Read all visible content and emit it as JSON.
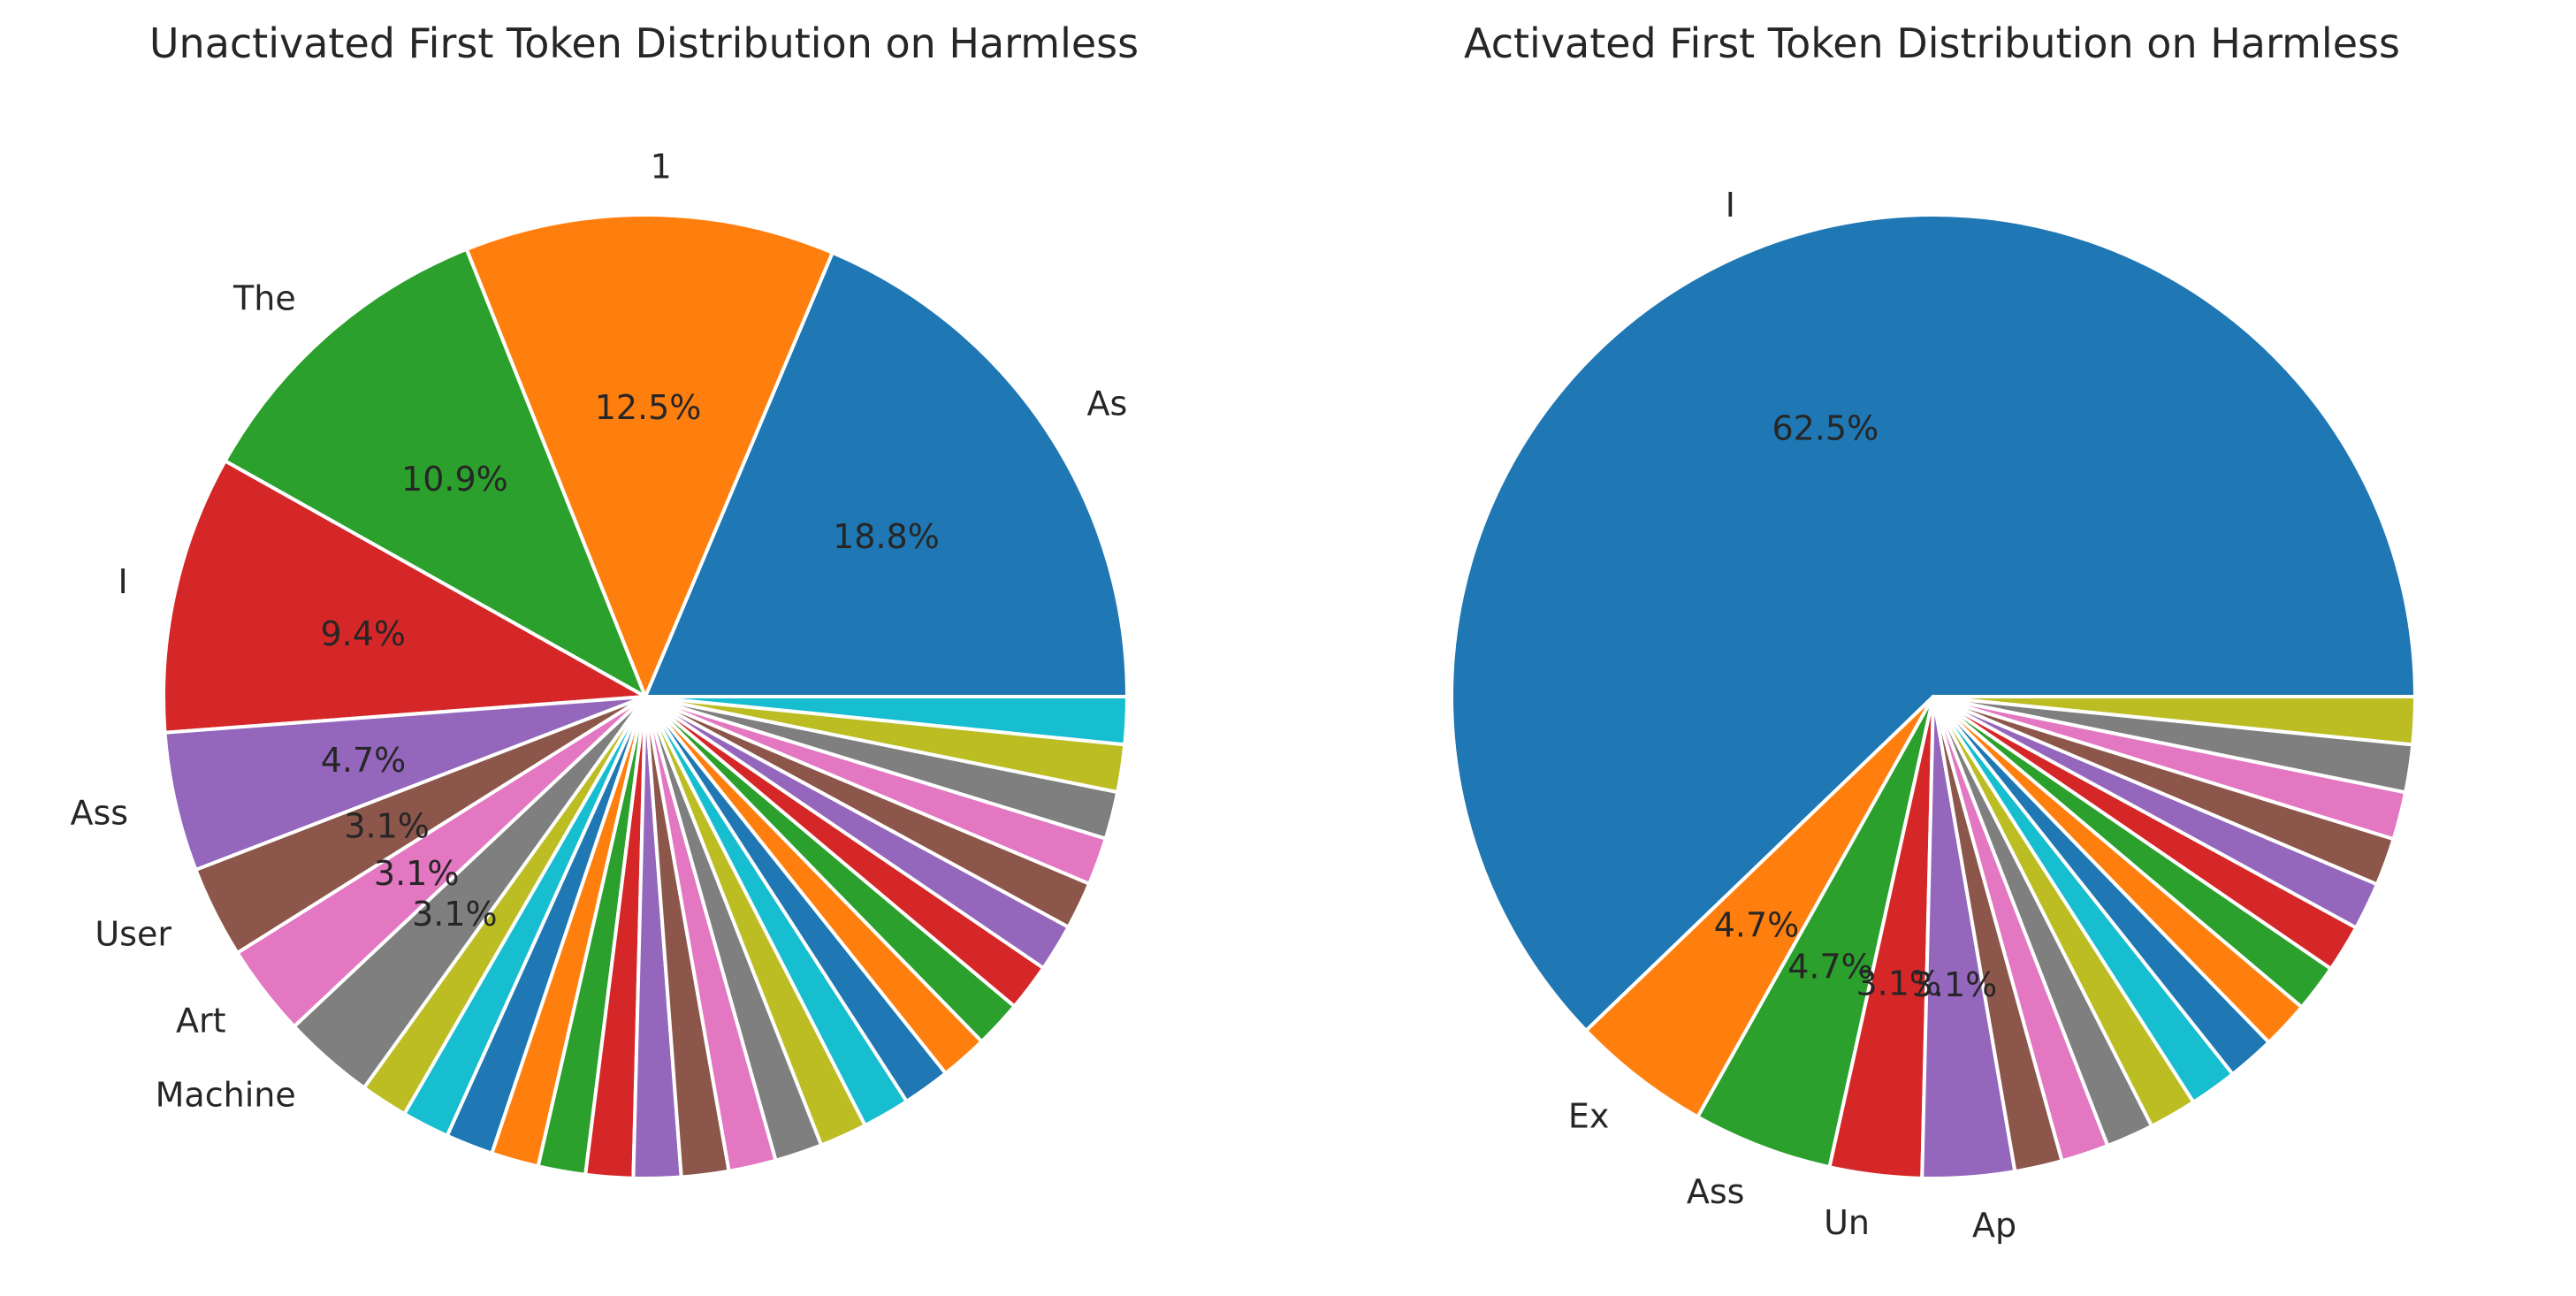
{
  "chart_data": [
    {
      "type": "pie",
      "title": "Unactivated First Token Distribution on Harmless",
      "slices": [
        {
          "label": "As",
          "value": 18.8,
          "pct_label": "18.8%",
          "color": "#1f77b4"
        },
        {
          "label": "1",
          "value": 12.5,
          "pct_label": "12.5%",
          "color": "#ff7f0e"
        },
        {
          "label": "The",
          "value": 10.9,
          "pct_label": "10.9%",
          "color": "#2ca02c"
        },
        {
          "label": "I",
          "value": 9.4,
          "pct_label": "9.4%",
          "color": "#d62728"
        },
        {
          "label": "Ass",
          "value": 4.7,
          "pct_label": "4.7%",
          "color": "#9467bd"
        },
        {
          "label": "User",
          "value": 3.1,
          "pct_label": "3.1%",
          "color": "#8c564b"
        },
        {
          "label": "Art",
          "value": 3.1,
          "pct_label": "3.1%",
          "color": "#e377c2"
        },
        {
          "label": "Machine",
          "value": 3.1,
          "pct_label": "3.1%",
          "color": "#7f7f7f"
        },
        {
          "label": "",
          "value": 1.6,
          "pct_label": "",
          "color": "#bcbd22"
        },
        {
          "label": "",
          "value": 1.6,
          "pct_label": "",
          "color": "#17becf"
        },
        {
          "label": "",
          "value": 1.6,
          "pct_label": "",
          "color": "#1f77b4"
        },
        {
          "label": "",
          "value": 1.6,
          "pct_label": "",
          "color": "#ff7f0e"
        },
        {
          "label": "",
          "value": 1.6,
          "pct_label": "",
          "color": "#2ca02c"
        },
        {
          "label": "",
          "value": 1.6,
          "pct_label": "",
          "color": "#d62728"
        },
        {
          "label": "",
          "value": 1.6,
          "pct_label": "",
          "color": "#9467bd"
        },
        {
          "label": "",
          "value": 1.6,
          "pct_label": "",
          "color": "#8c564b"
        },
        {
          "label": "",
          "value": 1.6,
          "pct_label": "",
          "color": "#e377c2"
        },
        {
          "label": "",
          "value": 1.6,
          "pct_label": "",
          "color": "#7f7f7f"
        },
        {
          "label": "",
          "value": 1.6,
          "pct_label": "",
          "color": "#bcbd22"
        },
        {
          "label": "",
          "value": 1.6,
          "pct_label": "",
          "color": "#17becf"
        },
        {
          "label": "",
          "value": 1.6,
          "pct_label": "",
          "color": "#1f77b4"
        },
        {
          "label": "",
          "value": 1.6,
          "pct_label": "",
          "color": "#ff7f0e"
        },
        {
          "label": "",
          "value": 1.6,
          "pct_label": "",
          "color": "#2ca02c"
        },
        {
          "label": "",
          "value": 1.6,
          "pct_label": "",
          "color": "#d62728"
        },
        {
          "label": "",
          "value": 1.6,
          "pct_label": "",
          "color": "#9467bd"
        },
        {
          "label": "",
          "value": 1.6,
          "pct_label": "",
          "color": "#8c564b"
        },
        {
          "label": "",
          "value": 1.6,
          "pct_label": "",
          "color": "#e377c2"
        },
        {
          "label": "",
          "value": 1.6,
          "pct_label": "",
          "color": "#7f7f7f"
        },
        {
          "label": "",
          "value": 1.6,
          "pct_label": "",
          "color": "#bcbd22"
        },
        {
          "label": "",
          "value": 1.6,
          "pct_label": "",
          "color": "#17becf"
        }
      ]
    },
    {
      "type": "pie",
      "title": "Activated First Token Distribution on Harmless",
      "slices": [
        {
          "label": "I",
          "value": 62.5,
          "pct_label": "62.5%",
          "color": "#1f77b4"
        },
        {
          "label": "Ex",
          "value": 4.7,
          "pct_label": "4.7%",
          "color": "#ff7f0e"
        },
        {
          "label": "Ass",
          "value": 4.7,
          "pct_label": "4.7%",
          "color": "#2ca02c"
        },
        {
          "label": "Un",
          "value": 3.1,
          "pct_label": "3.1%",
          "color": "#d62728"
        },
        {
          "label": "Ap",
          "value": 3.1,
          "pct_label": "3.1%",
          "color": "#9467bd"
        },
        {
          "label": "",
          "value": 1.6,
          "pct_label": "",
          "color": "#8c564b"
        },
        {
          "label": "",
          "value": 1.6,
          "pct_label": "",
          "color": "#e377c2"
        },
        {
          "label": "",
          "value": 1.6,
          "pct_label": "",
          "color": "#7f7f7f"
        },
        {
          "label": "",
          "value": 1.6,
          "pct_label": "",
          "color": "#bcbd22"
        },
        {
          "label": "",
          "value": 1.6,
          "pct_label": "",
          "color": "#17becf"
        },
        {
          "label": "",
          "value": 1.6,
          "pct_label": "",
          "color": "#1f77b4"
        },
        {
          "label": "",
          "value": 1.6,
          "pct_label": "",
          "color": "#ff7f0e"
        },
        {
          "label": "",
          "value": 1.6,
          "pct_label": "",
          "color": "#2ca02c"
        },
        {
          "label": "",
          "value": 1.6,
          "pct_label": "",
          "color": "#d62728"
        },
        {
          "label": "",
          "value": 1.6,
          "pct_label": "",
          "color": "#9467bd"
        },
        {
          "label": "",
          "value": 1.6,
          "pct_label": "",
          "color": "#8c564b"
        },
        {
          "label": "",
          "value": 1.6,
          "pct_label": "",
          "color": "#e377c2"
        },
        {
          "label": "",
          "value": 1.6,
          "pct_label": "",
          "color": "#7f7f7f"
        },
        {
          "label": "",
          "value": 1.6,
          "pct_label": "",
          "color": "#bcbd22"
        }
      ]
    }
  ]
}
